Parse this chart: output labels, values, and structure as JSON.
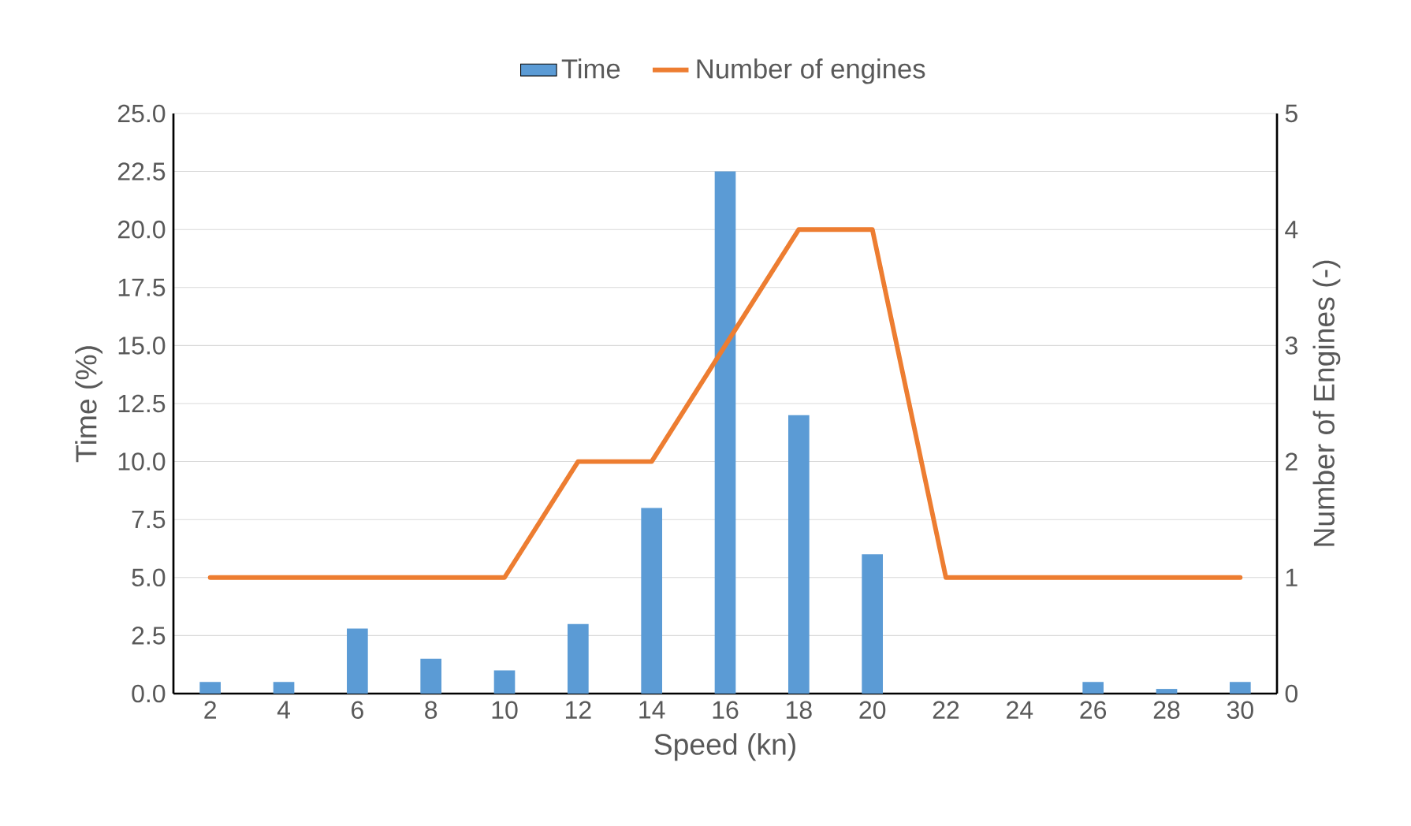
{
  "chart_data": {
    "type": "bar",
    "xlabel": "Speed (kn)",
    "ylabel": "Time (%)",
    "y2label": "Number of Engines (-)",
    "categories": [
      "2",
      "4",
      "6",
      "8",
      "10",
      "12",
      "14",
      "16",
      "18",
      "20",
      "22",
      "24",
      "26",
      "28",
      "30"
    ],
    "series": [
      {
        "name": "Time",
        "color": "#5b9bd5",
        "values": [
          0.5,
          0.5,
          2.8,
          1.5,
          1.0,
          3.0,
          8.0,
          22.5,
          12.0,
          6.0,
          0,
          0,
          0.5,
          0.2,
          0.5
        ]
      },
      {
        "name": "Number of engines",
        "type": "line",
        "axis": "y2",
        "color": "#ed7d31",
        "values": [
          1,
          1,
          1,
          1,
          1,
          2,
          2,
          3,
          4,
          4,
          1,
          1,
          1,
          1,
          1
        ]
      }
    ],
    "ylim": [
      0,
      25
    ],
    "yticks": [
      {
        "value": 0,
        "label": "0.0"
      },
      {
        "value": 2.5,
        "label": "2.5"
      },
      {
        "value": 5,
        "label": "5.0"
      },
      {
        "value": 7.5,
        "label": "7.5"
      },
      {
        "value": 10,
        "label": "10.0"
      },
      {
        "value": 12.5,
        "label": "12.5"
      },
      {
        "value": 15,
        "label": "15.0"
      },
      {
        "value": 17.5,
        "label": "17.5"
      },
      {
        "value": 20,
        "label": "20.0"
      },
      {
        "value": 22.5,
        "label": "22.5"
      },
      {
        "value": 25,
        "label": "25.0"
      }
    ],
    "y2lim": [
      0,
      5
    ],
    "y2ticks": [
      0,
      1,
      2,
      3,
      4,
      5
    ],
    "grid": "y",
    "legend": "top",
    "marker": "none",
    "line_style": "solid"
  }
}
